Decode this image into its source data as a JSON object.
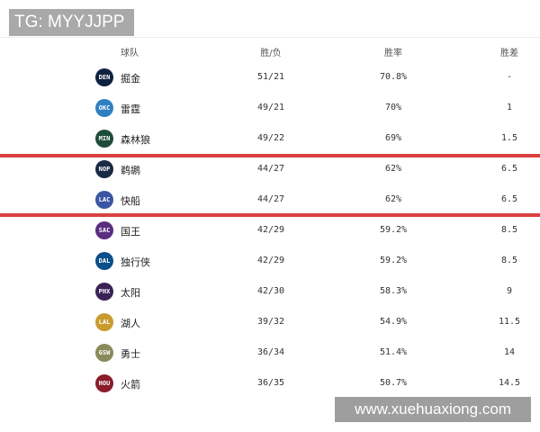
{
  "watermark_top": "TG: MYYJJPP",
  "watermark_bottom": "www.xuehuaxiong.com",
  "headers": {
    "team": "球队",
    "record": "胜/负",
    "pct": "胜率",
    "gb": "胜差"
  },
  "highlight_color": "#d8413f",
  "rows": [
    {
      "abbr": "DEN",
      "team": "掘金",
      "record": "51/21",
      "pct": "70.8%",
      "gb": "-",
      "color": "#0e2240"
    },
    {
      "abbr": "OKC",
      "team": "雷霆",
      "record": "49/21",
      "pct": "70%",
      "gb": "1",
      "color": "#2f7fc1"
    },
    {
      "abbr": "MIN",
      "team": "森林狼",
      "record": "49/22",
      "pct": "69%",
      "gb": "1.5",
      "color": "#1e4d3a"
    },
    {
      "abbr": "NOP",
      "team": "鹈鹕",
      "record": "44/27",
      "pct": "62%",
      "gb": "6.5",
      "color": "#1a2a44"
    },
    {
      "abbr": "LAC",
      "team": "快船",
      "record": "44/27",
      "pct": "62%",
      "gb": "6.5",
      "color": "#3a55a4"
    },
    {
      "abbr": "SAC",
      "team": "国王",
      "record": "42/29",
      "pct": "59.2%",
      "gb": "8.5",
      "color": "#5a2d81"
    },
    {
      "abbr": "DAL",
      "team": "独行侠",
      "record": "42/29",
      "pct": "59.2%",
      "gb": "8.5",
      "color": "#0b4f8a"
    },
    {
      "abbr": "PHX",
      "team": "太阳",
      "record": "42/30",
      "pct": "58.3%",
      "gb": "9",
      "color": "#3a2256"
    },
    {
      "abbr": "LAL",
      "team": "湖人",
      "record": "39/32",
      "pct": "54.9%",
      "gb": "11.5",
      "color": "#c99a2e"
    },
    {
      "abbr": "GSW",
      "team": "勇士",
      "record": "36/34",
      "pct": "51.4%",
      "gb": "14",
      "color": "#8a8a5a"
    },
    {
      "abbr": "HOU",
      "team": "火箭",
      "record": "36/35",
      "pct": "50.7%",
      "gb": "14.5",
      "color": "#8a1c2b"
    }
  ]
}
